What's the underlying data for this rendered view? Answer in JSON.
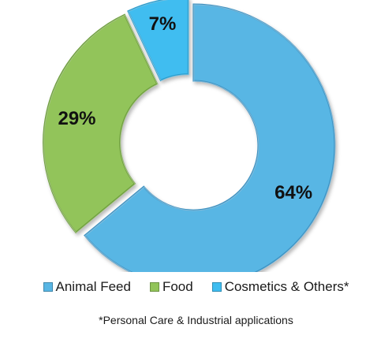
{
  "chart_data": {
    "type": "pie",
    "donut": true,
    "categories": [
      "Animal Feed",
      "Food",
      "Cosmetics & Others*"
    ],
    "values": [
      64,
      29,
      7
    ],
    "data_labels": [
      "64%",
      "29%",
      "7%"
    ],
    "colors": [
      "#58b6e4",
      "#92c45a",
      "#3fbdf0"
    ],
    "legend_position": "bottom",
    "footnote": "*Personal Care & Industrial applications"
  }
}
